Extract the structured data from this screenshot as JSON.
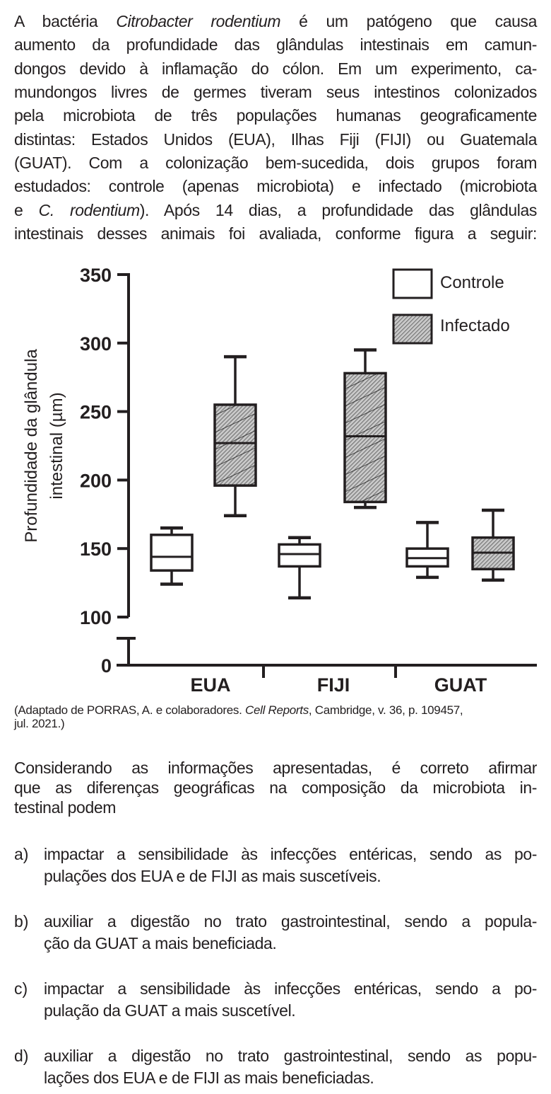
{
  "intro": {
    "l1": [
      "A bactéria ",
      "Citrobacter rodentium",
      " é um patógeno que causa"
    ],
    "l2": "aumento da profundidade das glândulas intestinais em camun-",
    "l3": "dongos devido à inflamação do cólon. Em um experimento, ca-",
    "l4": "mundongos livres de germes tiveram seus intestinos colonizados",
    "l5": "pela microbiota de três populações humanas geograficamente",
    "l6": "distintas: Estados Unidos (EUA), Ilhas Fiji (FIJI) ou Guatemala",
    "l7": "(GUAT). Com a colonização bem-sucedida, dois grupos foram",
    "l8": "estudados: controle (apenas microbiota) e infectado (microbiota",
    "l9": [
      "e ",
      "C. rodentium",
      "). Após 14 dias, a profundidade das glândulas"
    ],
    "l10": "intestinais desses animais foi avaliada, conforme figura a seguir:"
  },
  "chart_data": {
    "type": "boxplot",
    "ylabel_lines": [
      "Profundidade da glândula",
      "intestinal (µm)"
    ],
    "yticks": [
      "0",
      "100",
      "150",
      "200",
      "250",
      "300",
      "350"
    ],
    "ylim": [
      100,
      350
    ],
    "axis_break": true,
    "categories": [
      "EUA",
      "FIJI",
      "GUAT"
    ],
    "legend": {
      "position": "top-right",
      "entries": [
        "Controle",
        "Infectado"
      ]
    },
    "series": [
      {
        "name": "Controle",
        "boxes": [
          {
            "min": 124,
            "q1": 134,
            "median": 144,
            "q3": 160,
            "max": 165
          },
          {
            "min": 114,
            "q1": 137,
            "median": 146,
            "q3": 153,
            "max": 158
          },
          {
            "min": 129,
            "q1": 137,
            "median": 143,
            "q3": 150,
            "max": 169
          }
        ]
      },
      {
        "name": "Infectado",
        "boxes": [
          {
            "min": 174,
            "q1": 196,
            "median": 227,
            "q3": 255,
            "max": 290
          },
          {
            "min": 180,
            "q1": 184,
            "median": 232,
            "q3": 278,
            "max": 295
          },
          {
            "min": 127,
            "q1": 135,
            "median": 147,
            "q3": 158,
            "max": 178
          }
        ]
      }
    ]
  },
  "caption": {
    "l1": [
      "(Adaptado de PORRAS, A. e colaboradores. ",
      "Cell Reports",
      ", Cambridge, v. 36, p. 109457,"
    ],
    "l2": "jul. 2021.)"
  },
  "question": {
    "l1": "Considerando as informações apresentadas, é correto afirmar",
    "l2": "que as diferenças geográficas na composição da microbiota in-",
    "l3": "testinal podem"
  },
  "options": [
    {
      "letter": "a)",
      "l1": "impactar a sensibilidade às infecções entéricas, sendo as po-",
      "l2": "pulações dos EUA e de FIJI as mais suscetíveis."
    },
    {
      "letter": "b)",
      "l1": "auxiliar a digestão no trato gastrointestinal, sendo a popula-",
      "l2": "ção da GUAT a mais beneficiada."
    },
    {
      "letter": "c)",
      "l1": "impactar a sensibilidade às infecções entéricas, sendo a po-",
      "l2": "pulação da GUAT a mais suscetível."
    },
    {
      "letter": "d)",
      "l1": "auxiliar a digestão no trato gastrointestinal, sendo as popu-",
      "l2": "lações dos EUA e de FIJI as mais beneficiadas."
    }
  ]
}
